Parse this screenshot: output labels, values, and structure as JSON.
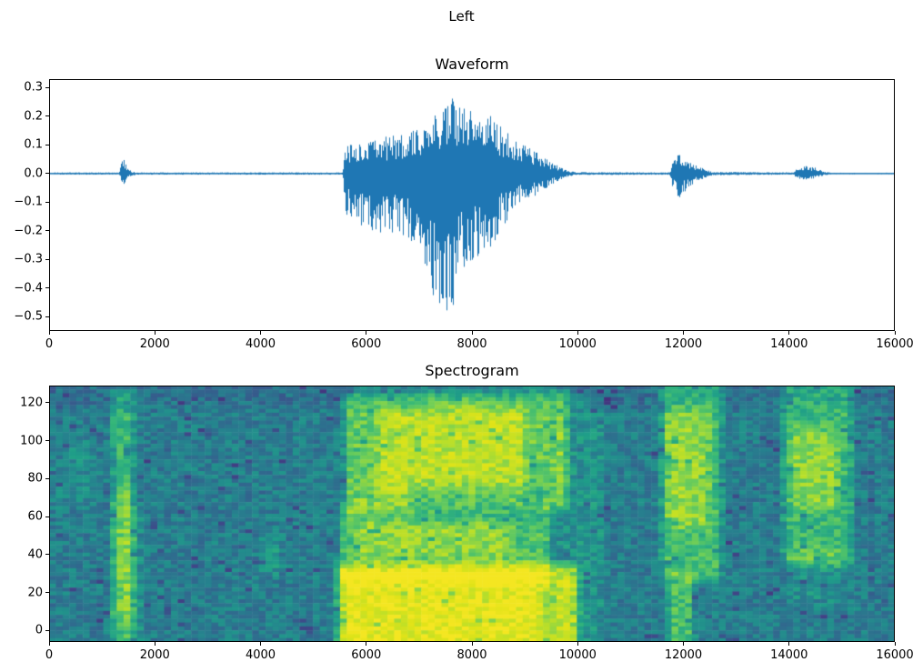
{
  "figure": {
    "suptitle": "Left",
    "background": "#ffffff"
  },
  "chart_data": [
    {
      "type": "line",
      "title": "Waveform",
      "line_color": "#1f77b4",
      "xlim": [
        0,
        16000
      ],
      "ylim": [
        -0.55,
        0.33
      ],
      "xtick_values": [
        0,
        2000,
        4000,
        6000,
        8000,
        10000,
        12000,
        14000,
        16000
      ],
      "xtick_labels": [
        "0",
        "2000",
        "4000",
        "6000",
        "8000",
        "10000",
        "12000",
        "14000",
        "16000"
      ],
      "ytick_values": [
        0.3,
        0.2,
        0.1,
        0.0,
        -0.1,
        -0.2,
        -0.3,
        -0.4,
        -0.5
      ],
      "ytick_labels": [
        "0.3",
        "0.2",
        "0.1",
        "0.0",
        "−0.1",
        "−0.2",
        "−0.3",
        "−0.4",
        "−0.5"
      ],
      "envelope_points": [
        [
          0,
          0.004,
          -0.004
        ],
        [
          1330,
          0.004,
          -0.004
        ],
        [
          1370,
          0.04,
          -0.035
        ],
        [
          1420,
          0.05,
          -0.045
        ],
        [
          1470,
          0.025,
          -0.02
        ],
        [
          1560,
          0.008,
          -0.008
        ],
        [
          1650,
          0.004,
          -0.004
        ],
        [
          5560,
          0.004,
          -0.004
        ],
        [
          5610,
          0.1,
          -0.14
        ],
        [
          5800,
          0.11,
          -0.17
        ],
        [
          6100,
          0.12,
          -0.22
        ],
        [
          6400,
          0.13,
          -0.2
        ],
        [
          6700,
          0.14,
          -0.22
        ],
        [
          7000,
          0.16,
          -0.26
        ],
        [
          7200,
          0.2,
          -0.4
        ],
        [
          7400,
          0.24,
          -0.52
        ],
        [
          7600,
          0.28,
          -0.5
        ],
        [
          7800,
          0.24,
          -0.38
        ],
        [
          8000,
          0.22,
          -0.31
        ],
        [
          8300,
          0.23,
          -0.28
        ],
        [
          8600,
          0.16,
          -0.18
        ],
        [
          8900,
          0.11,
          -0.11
        ],
        [
          9200,
          0.08,
          -0.08
        ],
        [
          9500,
          0.04,
          -0.04
        ],
        [
          9750,
          0.015,
          -0.015
        ],
        [
          9950,
          0.005,
          -0.005
        ],
        [
          11740,
          0.004,
          -0.004
        ],
        [
          11800,
          0.04,
          -0.05
        ],
        [
          11900,
          0.07,
          -0.09
        ],
        [
          12000,
          0.06,
          -0.07
        ],
        [
          12150,
          0.04,
          -0.04
        ],
        [
          12350,
          0.02,
          -0.02
        ],
        [
          12550,
          0.006,
          -0.006
        ],
        [
          14080,
          0.004,
          -0.004
        ],
        [
          14160,
          0.022,
          -0.022
        ],
        [
          14300,
          0.028,
          -0.026
        ],
        [
          14480,
          0.022,
          -0.02
        ],
        [
          14650,
          0.008,
          -0.008
        ],
        [
          14800,
          0.003,
          -0.003
        ],
        [
          16000,
          0.003,
          -0.003
        ]
      ]
    },
    {
      "type": "heatmap",
      "title": "Spectrogram",
      "colormap": "viridis",
      "xlim": [
        0,
        16000
      ],
      "ylim": [
        -6,
        129
      ],
      "xtick_values": [
        0,
        2000,
        4000,
        6000,
        8000,
        10000,
        12000,
        14000,
        16000
      ],
      "xtick_labels": [
        "0",
        "2000",
        "4000",
        "6000",
        "8000",
        "10000",
        "12000",
        "14000",
        "16000"
      ],
      "ytick_values": [
        0,
        20,
        40,
        60,
        80,
        100,
        120
      ],
      "ytick_labels": [
        "0",
        "20",
        "40",
        "60",
        "80",
        "100",
        "120"
      ],
      "grid": {
        "cols": 125,
        "rows": 66
      },
      "base_level": 0.38,
      "noise_amplitude": 0.09,
      "feather_x": 180,
      "feather_f": 8,
      "colormap_stops": [
        [
          68,
          1,
          84
        ],
        [
          72,
          40,
          120
        ],
        [
          62,
          74,
          137
        ],
        [
          49,
          104,
          142
        ],
        [
          38,
          130,
          142
        ],
        [
          31,
          158,
          137
        ],
        [
          53,
          183,
          121
        ],
        [
          109,
          205,
          89
        ],
        [
          180,
          222,
          44
        ],
        [
          223,
          227,
          24
        ],
        [
          253,
          231,
          37
        ]
      ],
      "energy_blobs": [
        {
          "x": [
            1290,
            1500
          ],
          "f": [
            -8,
            124
          ],
          "v": 0.22
        },
        {
          "x": [
            1310,
            1470
          ],
          "f": [
            8,
            70
          ],
          "v": 0.1
        },
        {
          "x": [
            1560,
            1700
          ],
          "f": [
            -8,
            60
          ],
          "v": 0.08
        },
        {
          "x": [
            150,
            800
          ],
          "f": [
            70,
            95
          ],
          "v": 0.05
        },
        {
          "x": [
            4100,
            4300
          ],
          "f": [
            34,
            46
          ],
          "v": 0.1
        },
        {
          "x": [
            5550,
            9900
          ],
          "f": [
            -8,
            30
          ],
          "v": 0.4
        },
        {
          "x": [
            5700,
            9200
          ],
          "f": [
            -8,
            24
          ],
          "v": 0.14
        },
        {
          "x": [
            5600,
            9400
          ],
          "f": [
            30,
            62
          ],
          "v": 0.26
        },
        {
          "x": [
            5900,
            8700
          ],
          "f": [
            42,
            54
          ],
          "v": 0.12
        },
        {
          "x": [
            6900,
            9300
          ],
          "f": [
            62,
            73
          ],
          "v": -0.1
        },
        {
          "x": [
            5700,
            9700
          ],
          "f": [
            68,
            122
          ],
          "v": 0.3
        },
        {
          "x": [
            6300,
            8900
          ],
          "f": [
            74,
            114
          ],
          "v": 0.14
        },
        {
          "x": [
            9700,
            10400
          ],
          "f": [
            -8,
            120
          ],
          "v": 0.08
        },
        {
          "x": [
            11680,
            12620
          ],
          "f": [
            30,
            126
          ],
          "v": 0.24
        },
        {
          "x": [
            11780,
            12380
          ],
          "f": [
            58,
            112
          ],
          "v": 0.14
        },
        {
          "x": [
            11800,
            12080
          ],
          "f": [
            -8,
            24
          ],
          "v": 0.26
        },
        {
          "x": [
            13980,
            15120
          ],
          "f": [
            38,
            126
          ],
          "v": 0.22
        },
        {
          "x": [
            14150,
            14850
          ],
          "f": [
            68,
            102
          ],
          "v": 0.14
        },
        {
          "x": [
            14100,
            14900
          ],
          "f": [
            18,
            40
          ],
          "v": 0.07
        },
        {
          "x": [
            0,
            16000
          ],
          "f": [
            122,
            129
          ],
          "v": -0.05
        }
      ]
    }
  ]
}
